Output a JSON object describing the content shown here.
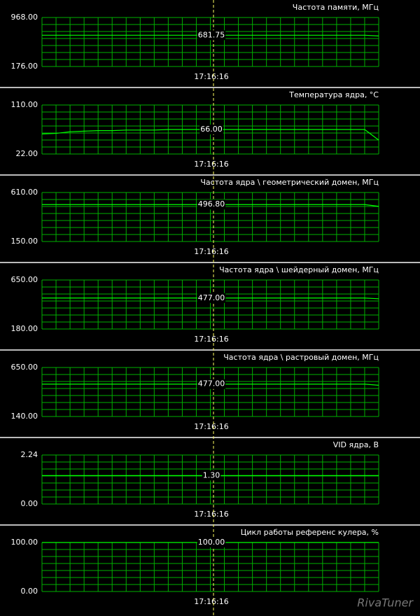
{
  "chart_data": [
    {
      "type": "line",
      "title": "Частота памяти, МГц",
      "ylim": [
        176,
        968
      ],
      "yticks": [
        {
          "value": 968,
          "label": "968.00"
        },
        {
          "value": 176,
          "label": "176.00"
        }
      ],
      "grid": true,
      "series": [
        {
          "color": "#00ff00",
          "values": [
            681.75,
            681.75,
            681.75,
            681.75,
            681.75,
            681.75,
            681.75,
            681.75,
            681.75,
            681.75,
            681.75,
            681.75,
            681.75,
            681.75,
            681.75,
            681.75,
            681.75,
            681.75,
            681.75,
            681.75,
            681.75,
            681.75,
            681.75,
            681.75,
            670
          ]
        }
      ],
      "cursor": {
        "x_label": "17:16:16",
        "value": 681.75,
        "label": "681.75"
      }
    },
    {
      "type": "line",
      "title": "Температура ядра, °С",
      "ylim": [
        22,
        110
      ],
      "yticks": [
        {
          "value": 110,
          "label": "110.00"
        },
        {
          "value": 22,
          "label": "22.00"
        }
      ],
      "grid": true,
      "series": [
        {
          "color": "#00ff00",
          "values": [
            58,
            59,
            62,
            63,
            64,
            64,
            65,
            65,
            65,
            66,
            66,
            66,
            66,
            66,
            66,
            66,
            66,
            66,
            66,
            66,
            66,
            66,
            66,
            66,
            47
          ]
        }
      ],
      "cursor": {
        "x_label": "17:16:16",
        "value": 66,
        "label": "66.00"
      }
    },
    {
      "type": "line",
      "title": "Частота ядра \\ геометрический домен, МГц",
      "ylim": [
        150,
        610
      ],
      "yticks": [
        {
          "value": 610,
          "label": "610.00"
        },
        {
          "value": 150,
          "label": "150.00"
        }
      ],
      "grid": true,
      "series": [
        {
          "color": "#00ff00",
          "values": [
            496.8,
            496.8,
            496.8,
            496.8,
            496.8,
            496.8,
            496.8,
            496.8,
            496.8,
            496.8,
            496.8,
            496.8,
            496.8,
            496.8,
            496.8,
            496.8,
            496.8,
            496.8,
            496.8,
            496.8,
            496.8,
            496.8,
            496.8,
            496.8,
            480
          ]
        }
      ],
      "cursor": {
        "x_label": "17:16:16",
        "value": 496.8,
        "label": "496.80"
      }
    },
    {
      "type": "line",
      "title": "Частота ядра \\ шейдерный домен, МГц",
      "ylim": [
        180,
        650
      ],
      "yticks": [
        {
          "value": 650,
          "label": "650.00"
        },
        {
          "value": 180,
          "label": "180.00"
        }
      ],
      "grid": true,
      "series": [
        {
          "color": "#00ff00",
          "values": [
            477,
            477,
            477,
            477,
            477,
            477,
            477,
            477,
            477,
            477,
            477,
            477,
            477,
            477,
            477,
            477,
            477,
            477,
            477,
            477,
            477,
            477,
            477,
            477,
            470
          ]
        }
      ],
      "cursor": {
        "x_label": "17:16:16",
        "value": 477,
        "label": "477.00"
      }
    },
    {
      "type": "line",
      "title": "Частота ядра \\ растровый домен, МГц",
      "ylim": [
        140,
        650
      ],
      "yticks": [
        {
          "value": 650,
          "label": "650.00"
        },
        {
          "value": 140,
          "label": "140.00"
        }
      ],
      "grid": true,
      "series": [
        {
          "color": "#00ff00",
          "values": [
            477,
            477,
            477,
            477,
            477,
            477,
            477,
            477,
            477,
            477,
            477,
            477,
            477,
            477,
            477,
            477,
            477,
            477,
            477,
            477,
            477,
            477,
            477,
            477,
            465
          ]
        }
      ],
      "cursor": {
        "x_label": "17:16:16",
        "value": 477,
        "label": "477.00"
      }
    },
    {
      "type": "line",
      "title": "VID ядра, В",
      "ylim": [
        0,
        2.24
      ],
      "yticks": [
        {
          "value": 2.24,
          "label": "2.24"
        },
        {
          "value": 0,
          "label": "0.00"
        }
      ],
      "grid": true,
      "series": [
        {
          "color": "#00ff00",
          "values": [
            1.3,
            1.3,
            1.3,
            1.3,
            1.3,
            1.3,
            1.3,
            1.3,
            1.3,
            1.3,
            1.3,
            1.3,
            1.3,
            1.3,
            1.3,
            1.3,
            1.3,
            1.3,
            1.3,
            1.3,
            1.3,
            1.3,
            1.3,
            1.3,
            1.3
          ]
        }
      ],
      "cursor": {
        "x_label": "17:16:16",
        "value": 1.3,
        "label": "1.30"
      }
    },
    {
      "type": "line",
      "title": "Цикл работы референс кулера, %",
      "ylim": [
        0,
        100
      ],
      "yticks": [
        {
          "value": 100,
          "label": "100.00"
        },
        {
          "value": 0,
          "label": "0.00"
        }
      ],
      "grid": true,
      "series": [
        {
          "color": "#00ff00",
          "values": [
            100,
            100,
            100,
            100,
            100,
            100,
            100,
            100,
            100,
            100,
            100,
            100,
            100,
            100,
            100,
            100,
            100,
            100,
            100,
            100,
            100,
            100,
            100,
            100,
            100
          ]
        }
      ],
      "cursor": {
        "x_label": "17:16:16",
        "value": 100,
        "label": "100.00"
      }
    }
  ],
  "watermark": "RivaTuner"
}
